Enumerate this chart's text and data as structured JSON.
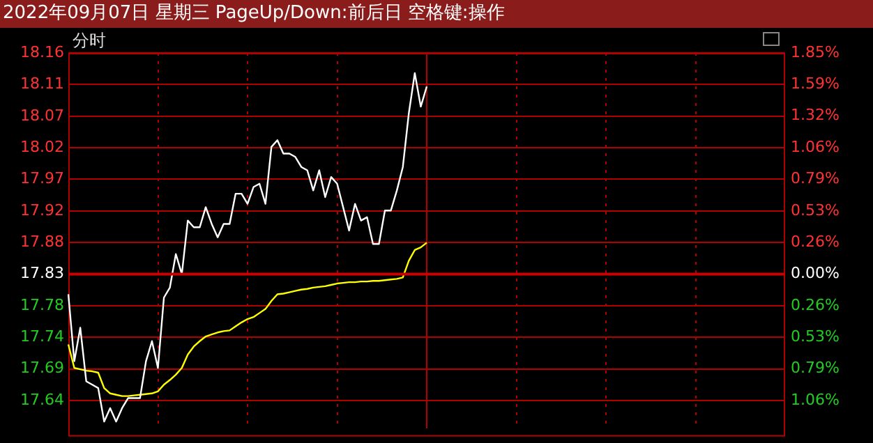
{
  "chart_data": {
    "type": "line",
    "title": "2022年09月07日 星期三 PageUp/Down:前后日 空格键:操作",
    "subtitle": "分时",
    "categories": [
      null,
      null,
      null,
      null,
      null,
      null,
      null,
      null,
      null,
      null,
      null,
      null,
      null,
      null,
      null,
      null,
      null,
      null,
      null,
      null,
      null,
      null,
      null,
      null,
      null,
      null,
      null,
      null,
      null,
      null,
      null,
      null,
      null,
      null,
      null,
      null,
      null,
      null,
      null,
      null,
      null,
      null,
      null,
      null,
      null,
      null,
      null,
      null,
      null,
      null,
      null,
      null,
      null,
      null,
      null,
      null,
      null,
      null,
      null,
      null,
      null,
      null,
      null,
      null,
      null,
      null,
      null,
      null,
      null,
      null,
      null,
      null,
      null,
      null,
      null,
      null,
      null,
      null,
      null,
      null,
      null,
      null,
      null,
      null,
      null,
      null,
      null,
      null,
      null,
      null,
      null,
      null,
      null,
      null,
      null,
      null,
      null,
      null,
      null,
      null,
      null,
      null,
      null,
      null,
      null,
      null,
      null,
      null,
      null,
      null,
      null,
      null,
      null,
      null,
      null,
      null,
      null,
      null,
      null,
      null,
      null
    ],
    "ylim": [
      17.6,
      18.1602
    ],
    "yticks": [
      {
        "value": 17.6413,
        "label": "17.64"
      },
      {
        "value": 17.6885,
        "label": "17.69"
      },
      {
        "value": 17.7357,
        "label": "17.74"
      },
      {
        "value": 17.7828,
        "label": "17.78"
      },
      {
        "value": 17.83,
        "label": "17.83"
      },
      {
        "value": 17.8772,
        "label": "17.88"
      },
      {
        "value": 17.9243,
        "label": "17.92"
      },
      {
        "value": 17.9715,
        "label": "17.97"
      },
      {
        "value": 18.0187,
        "label": "18.02"
      },
      {
        "value": 18.0658,
        "label": "18.07"
      },
      {
        "value": 18.113,
        "label": "18.11"
      },
      {
        "value": 18.1602,
        "label": "18.16"
      }
    ],
    "y2lim": [
      -1.29,
      1.8522
    ],
    "y2ticks": [
      {
        "value": -1.0584,
        "label": "1.06%"
      },
      {
        "value": -0.7938,
        "label": "0.79%"
      },
      {
        "value": -0.5292,
        "label": "0.53%"
      },
      {
        "value": -0.2646,
        "label": "0.26%"
      },
      {
        "value": 0,
        "label": "0.00%"
      },
      {
        "value": 0.2646,
        "label": "0.26%"
      },
      {
        "value": 0.5292,
        "label": "0.53%"
      },
      {
        "value": 0.7938,
        "label": "0.79%"
      },
      {
        "value": 1.0584,
        "label": "1.06%"
      },
      {
        "value": 1.323,
        "label": "1.32%"
      },
      {
        "value": 1.5876,
        "label": "1.59%"
      },
      {
        "value": 1.8522,
        "label": "1.85%"
      }
    ],
    "ref_lines": [
      {
        "axis": "y",
        "value": 17.83,
        "color": "#cc0000"
      }
    ],
    "grid": true,
    "marker": "none",
    "line_style": "solid",
    "tick_labels": "y",
    "series": [
      {
        "color": "#ffffff",
        "values": [
          17.8,
          17.7,
          17.75,
          17.67,
          17.665,
          17.66,
          17.61,
          17.63,
          17.61,
          17.63,
          17.645,
          17.645,
          17.645,
          17.7,
          17.73,
          17.69,
          17.795,
          17.81,
          17.86,
          17.83,
          17.91,
          17.9,
          17.9,
          17.93,
          17.905,
          17.885,
          17.905,
          17.905,
          17.95,
          17.95,
          17.935,
          17.96,
          17.965,
          17.935,
          18.02,
          18.03,
          18.01,
          18.01,
          18.005,
          17.99,
          17.985,
          17.955,
          17.985,
          17.945,
          17.975,
          17.965,
          17.93,
          17.895,
          17.935,
          17.91,
          17.915,
          17.875,
          17.875,
          17.925,
          17.925,
          17.955,
          17.99,
          18.07,
          18.13,
          18.08,
          18.11,
          null,
          null,
          null,
          null,
          null,
          null,
          null,
          null,
          null,
          null,
          null,
          null,
          null,
          null,
          null,
          null,
          null,
          null,
          null,
          null,
          null,
          null,
          null,
          null,
          null,
          null,
          null,
          null,
          null,
          null,
          null,
          null,
          null,
          null,
          null,
          null,
          null,
          null,
          null,
          null,
          null,
          null,
          null,
          null,
          null,
          null,
          null,
          null,
          null,
          null,
          null,
          null,
          null,
          null,
          null,
          null,
          null,
          null,
          null,
          null
        ]
      },
      {
        "color": "#ffff00",
        "values": [
          17.725,
          17.69,
          17.688,
          17.686,
          17.685,
          17.683,
          17.66,
          17.652,
          17.65,
          17.648,
          17.648,
          17.649,
          17.65,
          17.651,
          17.652,
          17.655,
          17.665,
          17.672,
          17.68,
          17.69,
          17.71,
          17.722,
          17.73,
          17.737,
          17.74,
          17.743,
          17.745,
          17.746,
          17.752,
          17.758,
          17.763,
          17.766,
          17.772,
          17.778,
          17.79,
          17.8,
          17.801,
          17.803,
          17.805,
          17.807,
          17.808,
          17.81,
          17.811,
          17.812,
          17.814,
          17.816,
          17.817,
          17.818,
          17.818,
          17.819,
          17.819,
          17.82,
          17.82,
          17.821,
          17.822,
          17.823,
          17.825,
          17.85,
          17.866,
          17.87,
          17.877,
          null,
          null,
          null,
          null,
          null,
          null,
          null,
          null,
          null,
          null,
          null,
          null,
          null,
          null,
          null,
          null,
          null,
          null,
          null,
          null,
          null,
          null,
          null,
          null,
          null,
          null,
          null,
          null,
          null,
          null,
          null,
          null,
          null,
          null,
          null,
          null,
          null,
          null,
          null,
          null,
          null,
          null,
          null,
          null,
          null,
          null,
          null,
          null,
          null,
          null,
          null,
          null,
          null,
          null,
          null,
          null,
          null,
          null,
          null,
          null
        ]
      }
    ]
  }
}
